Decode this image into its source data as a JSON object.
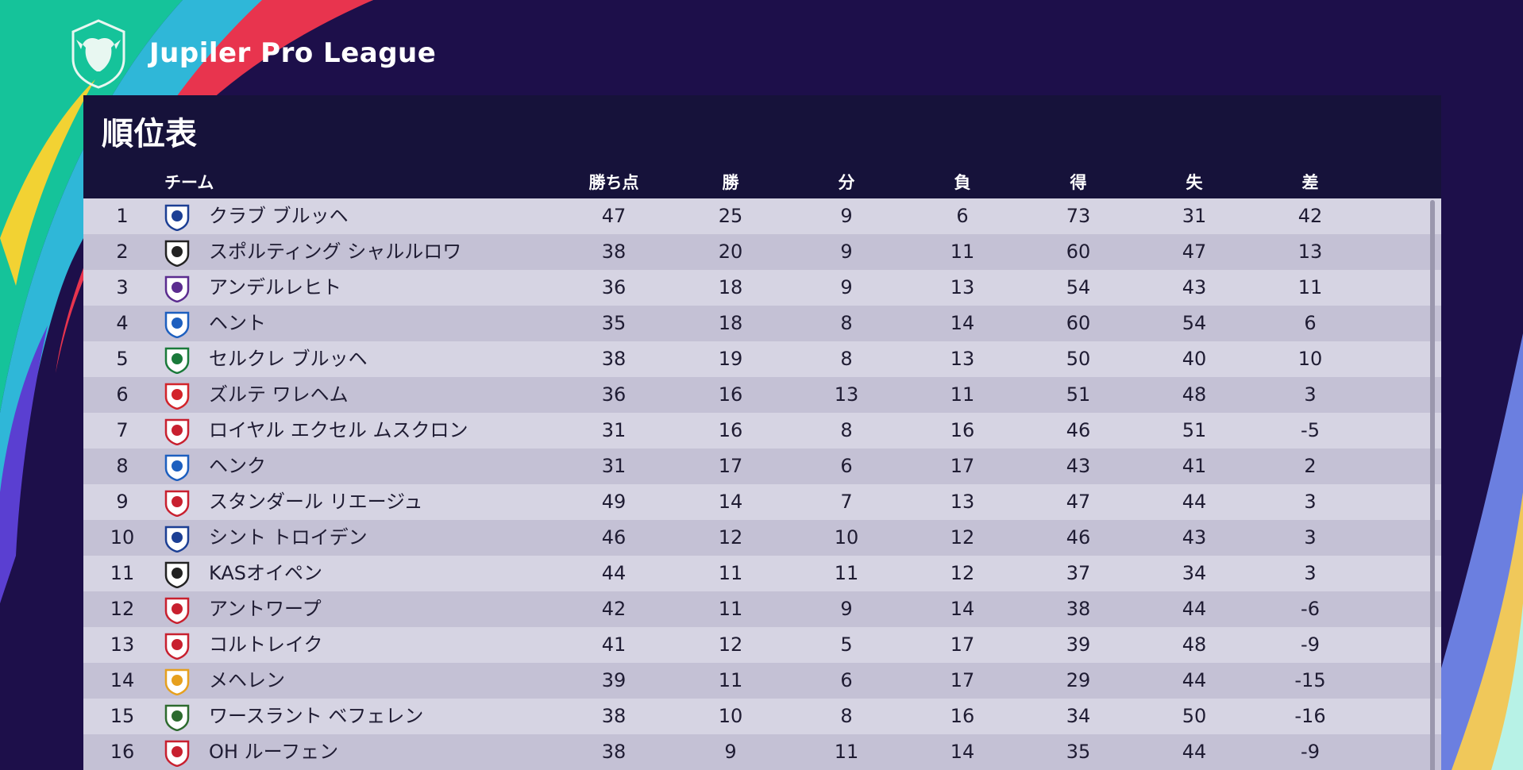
{
  "league": {
    "name": "Jupiler Pro League",
    "logo_icon": "bull-shield-icon"
  },
  "table": {
    "title": "順位表",
    "columns": {
      "team": "チーム",
      "points": "勝ち点",
      "wins": "勝",
      "draws": "分",
      "losses": "負",
      "goals_for": "得",
      "goals_against": "失",
      "goal_diff": "差"
    },
    "rows": [
      {
        "rank": "1",
        "team": "クラブ ブルッヘ",
        "points": "47",
        "wins": "25",
        "draws": "9",
        "losses": "6",
        "gf": "73",
        "ga": "31",
        "gd": "42",
        "crest": "club-brugge-crest-icon",
        "crest_color": "#1c3f94"
      },
      {
        "rank": "2",
        "team": "スポルティング シャルルロワ",
        "points": "38",
        "wins": "20",
        "draws": "9",
        "losses": "11",
        "gf": "60",
        "ga": "47",
        "gd": "13",
        "crest": "charleroi-crest-icon",
        "crest_color": "#222222"
      },
      {
        "rank": "3",
        "team": "アンデルレヒト",
        "points": "36",
        "wins": "18",
        "draws": "9",
        "losses": "13",
        "gf": "54",
        "ga": "43",
        "gd": "11",
        "crest": "anderlecht-crest-icon",
        "crest_color": "#5b2c8f"
      },
      {
        "rank": "4",
        "team": "ヘント",
        "points": "35",
        "wins": "18",
        "draws": "8",
        "losses": "14",
        "gf": "60",
        "ga": "54",
        "gd": "6",
        "crest": "gent-crest-icon",
        "crest_color": "#1d5fbf"
      },
      {
        "rank": "5",
        "team": "セルクレ ブルッヘ",
        "points": "38",
        "wins": "19",
        "draws": "8",
        "losses": "13",
        "gf": "50",
        "ga": "40",
        "gd": "10",
        "crest": "cercle-brugge-crest-icon",
        "crest_color": "#1a7a3a"
      },
      {
        "rank": "6",
        "team": "ズルテ ワレヘム",
        "points": "36",
        "wins": "16",
        "draws": "13",
        "losses": "11",
        "gf": "51",
        "ga": "48",
        "gd": "3",
        "crest": "zulte-waregem-crest-icon",
        "crest_color": "#d2232a"
      },
      {
        "rank": "7",
        "team": "ロイヤル エクセル ムスクロン",
        "points": "31",
        "wins": "16",
        "draws": "8",
        "losses": "16",
        "gf": "46",
        "ga": "51",
        "gd": "-5",
        "crest": "mouscron-crest-icon",
        "crest_color": "#c8202f"
      },
      {
        "rank": "8",
        "team": "ヘンク",
        "points": "31",
        "wins": "17",
        "draws": "6",
        "losses": "17",
        "gf": "43",
        "ga": "41",
        "gd": "2",
        "crest": "genk-crest-icon",
        "crest_color": "#1d5fbf"
      },
      {
        "rank": "9",
        "team": "スタンダール リエージュ",
        "points": "49",
        "wins": "14",
        "draws": "7",
        "losses": "13",
        "gf": "47",
        "ga": "44",
        "gd": "3",
        "crest": "standard-liege-crest-icon",
        "crest_color": "#c8202f"
      },
      {
        "rank": "10",
        "team": "シント トロイデン",
        "points": "46",
        "wins": "12",
        "draws": "10",
        "losses": "12",
        "gf": "46",
        "ga": "43",
        "gd": "3",
        "crest": "sint-truiden-crest-icon",
        "crest_color": "#1c3f94"
      },
      {
        "rank": "11",
        "team": "KASオイペン",
        "points": "44",
        "wins": "11",
        "draws": "11",
        "losses": "12",
        "gf": "37",
        "ga": "34",
        "gd": "3",
        "crest": "eupen-crest-icon",
        "crest_color": "#222222"
      },
      {
        "rank": "12",
        "team": "アントワープ",
        "points": "42",
        "wins": "11",
        "draws": "9",
        "losses": "14",
        "gf": "38",
        "ga": "44",
        "gd": "-6",
        "crest": "antwerp-crest-icon",
        "crest_color": "#c8202f"
      },
      {
        "rank": "13",
        "team": "コルトレイク",
        "points": "41",
        "wins": "12",
        "draws": "5",
        "losses": "17",
        "gf": "39",
        "ga": "48",
        "gd": "-9",
        "crest": "kortrijk-crest-icon",
        "crest_color": "#c8202f"
      },
      {
        "rank": "14",
        "team": "メヘレン",
        "points": "39",
        "wins": "11",
        "draws": "6",
        "losses": "17",
        "gf": "29",
        "ga": "44",
        "gd": "-15",
        "crest": "mechelen-crest-icon",
        "crest_color": "#e6a01e"
      },
      {
        "rank": "15",
        "team": "ワースラント ベフェレン",
        "points": "38",
        "wins": "10",
        "draws": "8",
        "losses": "16",
        "gf": "34",
        "ga": "50",
        "gd": "-16",
        "crest": "waasland-beveren-crest-icon",
        "crest_color": "#2d6b2f"
      },
      {
        "rank": "16",
        "team": "OH ルーフェン",
        "points": "38",
        "wins": "9",
        "draws": "11",
        "losses": "14",
        "gf": "35",
        "ga": "44",
        "gd": "-9",
        "crest": "oh-leuven-crest-icon",
        "crest_color": "#c8202f"
      }
    ]
  }
}
